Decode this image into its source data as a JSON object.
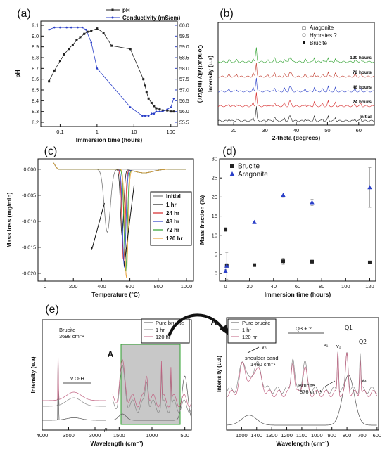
{
  "chart_data": [
    {
      "panel": "(a)",
      "type": "line",
      "xlabel": "Immersion time (hours)",
      "ylabel": "pH",
      "y2label": "Conductivity (mS/cm)",
      "x_scale": "log",
      "xlim": [
        0.03,
        150
      ],
      "ylim": [
        8.2,
        9.1
      ],
      "y2lim": [
        55.5,
        60.0
      ],
      "x_ticks": [
        "0.1",
        "1",
        "10",
        "100"
      ],
      "y_ticks": [
        "8.2",
        "8.3",
        "8.4",
        "8.5",
        "8.6",
        "8.7",
        "8.8",
        "8.9",
        "9.0",
        "9.1"
      ],
      "y2_ticks": [
        "55.5",
        "56.0",
        "56.5",
        "57.0",
        "57.5",
        "58.0",
        "58.5",
        "59.0",
        "59.5",
        "60.0"
      ],
      "legend": "top-right",
      "colors": {
        "pH": "#222222",
        "Conductivity": "#2a3fc8"
      },
      "series": [
        {
          "name": "pH",
          "axis": "left",
          "x": [
            0.05,
            0.07,
            0.1,
            0.13,
            0.17,
            0.22,
            0.28,
            0.35,
            0.45,
            0.55,
            0.7,
            1.0,
            1.5,
            2.5,
            8,
            18,
            20,
            22,
            25,
            30,
            35,
            40,
            50,
            60,
            80,
            100,
            120
          ],
          "y": [
            8.58,
            8.68,
            8.77,
            8.83,
            8.88,
            8.92,
            8.96,
            8.99,
            9.02,
            9.04,
            9.05,
            9.07,
            9.03,
            8.91,
            8.88,
            8.6,
            8.54,
            8.48,
            8.42,
            8.38,
            8.35,
            8.33,
            8.32,
            8.31,
            8.31,
            8.3,
            8.3
          ]
        },
        {
          "name": "Conductivity",
          "axis": "right",
          "x": [
            0.05,
            0.07,
            0.1,
            0.15,
            0.2,
            0.3,
            0.4,
            0.5,
            0.7,
            1.0,
            8,
            17,
            20,
            25,
            30,
            35,
            40,
            50,
            60,
            80,
            100,
            120
          ],
          "y": [
            59.8,
            59.9,
            59.9,
            59.9,
            59.9,
            59.9,
            59.9,
            59.8,
            59.2,
            58.0,
            56.2,
            55.8,
            55.8,
            55.8,
            55.9,
            55.9,
            56.0,
            56.0,
            56.0,
            56.1,
            56.2,
            56.6
          ]
        }
      ]
    },
    {
      "panel": "(b)",
      "type": "line",
      "xlabel": "2-theta (degrees)",
      "ylabel": "Intensity (u.a)",
      "xlim": [
        15,
        65
      ],
      "x_ticks": [
        "20",
        "30",
        "40",
        "50",
        "60"
      ],
      "legend": "top-right",
      "legend_entries": [
        "Aragonite",
        "Hydrates ?",
        "Brucite"
      ],
      "series": [
        {
          "name": "120 hours",
          "color": "#2ca02c"
        },
        {
          "name": "72 hours",
          "color": "#c0392b"
        },
        {
          "name": "48 hours",
          "color": "#2a3fc8"
        },
        {
          "name": "24 hours",
          "color": "#d62728"
        },
        {
          "name": "Initial",
          "color": "#222222"
        }
      ]
    },
    {
      "panel": "(c)",
      "type": "line",
      "xlabel": "Temperature (°C)",
      "ylabel": "Mass loss (mg/min)",
      "xlim": [
        -50,
        1050
      ],
      "ylim": [
        -0.0215,
        0.002
      ],
      "x_ticks": [
        "0",
        "200",
        "400",
        "600",
        "800",
        "1000"
      ],
      "y_ticks": [
        "0.000",
        "-0.005",
        "-0.010",
        "-0.015",
        "-0.020"
      ],
      "legend": "center-right",
      "series": [
        {
          "name": "Initial",
          "color": "#777777",
          "peak_x": 440,
          "peak_y": -0.0121
        },
        {
          "name": "1 hr",
          "color": "#222222",
          "peak_x": 545,
          "peak_y": -0.0128
        },
        {
          "name": "24 hr",
          "color": "#d62728",
          "peak_x": 555,
          "peak_y": -0.0176
        },
        {
          "name": "48 hr",
          "color": "#2a3fc8",
          "peak_x": 560,
          "peak_y": -0.0188
        },
        {
          "name": "72 hr",
          "color": "#2ca02c",
          "peak_x": 570,
          "peak_y": -0.0198
        },
        {
          "name": "120 hr",
          "color": "#e8a33c",
          "peak_x": 575,
          "peak_y": -0.0209
        }
      ]
    },
    {
      "panel": "(d)",
      "type": "scatter",
      "xlabel": "Immersion time (hours)",
      "ylabel": "Mass fraction (%)",
      "xlim": [
        -5,
        125
      ],
      "ylim": [
        -2,
        30
      ],
      "x_ticks": [
        "0",
        "20",
        "40",
        "60",
        "80",
        "100",
        "120"
      ],
      "y_ticks": [
        "0",
        "5",
        "10",
        "15",
        "20",
        "25",
        "30"
      ],
      "legend": "top-left",
      "series": [
        {
          "name": "Brucite",
          "marker": "square",
          "color": "#222222",
          "x": [
            0,
            1,
            24,
            48,
            72,
            120
          ],
          "y": [
            11.5,
            2.0,
            2.2,
            3.2,
            3.1,
            2.9
          ],
          "err": [
            0.5,
            3.5,
            0.3,
            0.8,
            0.4,
            0.3
          ]
        },
        {
          "name": "Aragonite",
          "marker": "triangle",
          "color": "#2a3fc8",
          "x": [
            0,
            1,
            24,
            48,
            72,
            120
          ],
          "y": [
            0.6,
            2.0,
            13.4,
            20.5,
            18.6,
            22.5
          ],
          "err": [
            0.4,
            0.6,
            0.3,
            0.6,
            0.8,
            5.2
          ]
        }
      ]
    },
    {
      "panel": "(e)",
      "type": "line",
      "xlabel": "Wavelength (cm⁻¹)",
      "ylabel": "Intensity (u.a)",
      "xlim": [
        4000,
        400
      ],
      "x_ticks": [
        "4000",
        "3500",
        "3000",
        "1500",
        "1000",
        "500"
      ],
      "inset_label": "A",
      "series": [
        {
          "name": "Pure brucite",
          "color": "#555555"
        },
        {
          "name": "1 hr",
          "color": "#888888"
        },
        {
          "name": "120 hr",
          "color": "#c06080"
        }
      ],
      "annotations": [
        "Brucite",
        "3698 cm⁻¹",
        "v O-H"
      ]
    },
    {
      "panel": "A (zoom)",
      "type": "line",
      "xlabel": "Wavelength (cm⁻¹)",
      "ylabel": "Intensity (u.a)",
      "xlim": [
        1600,
        600
      ],
      "x_ticks": [
        "1500",
        "1400",
        "1300",
        "1200",
        "1100",
        "1000",
        "900",
        "800",
        "700",
        "600"
      ],
      "series": [
        {
          "name": "Pure brucite",
          "color": "#555555"
        },
        {
          "name": "1 hr",
          "color": "#888888"
        },
        {
          "name": "120 hr",
          "color": "#c06080"
        }
      ],
      "annotations": [
        "v₃",
        "shoulder band",
        "1460 cm⁻¹",
        "Q3 + ?",
        "v₁",
        "v₂",
        "Q1",
        "Q2",
        "v₄",
        "Brucite",
        "876 cm⁻¹"
      ]
    }
  ],
  "panel_labels": [
    "(a)",
    "(b)",
    "(c)",
    "(d)",
    "(e)",
    "A",
    "A"
  ]
}
